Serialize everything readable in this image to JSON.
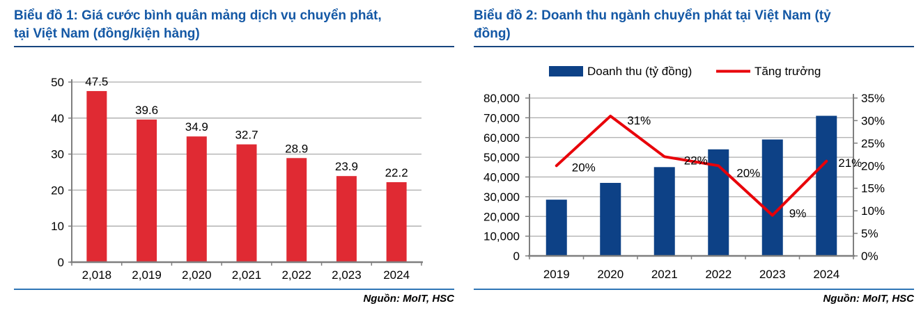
{
  "panels": [
    {
      "title": "Biểu đồ 1: Giá cước bình quân mảng dịch vụ chuyển phát,\ntại Việt Nam (đồng/kiện hàng)",
      "source": "Nguồn: MoIT, HSC"
    },
    {
      "title": "Biểu đồ 2: Doanh thu ngành chuyển phát tại Việt Nam (tỷ\nđồng)",
      "source": "Nguồn: MoIT, HSC"
    }
  ],
  "colors": {
    "title_blue": "#1458A5",
    "title_underline_navy": "#16457F",
    "source_divider_blue": "#2E75B6",
    "bar_red": "#E02A33",
    "line_red": "#E80009",
    "bar_blue": "#0D4186",
    "grid_gray": "#ABABAB",
    "axis_gray": "#7F7F7F",
    "text_black": "#000000"
  },
  "chart_data": [
    {
      "type": "bar",
      "title": "Biểu đồ 1: Giá cước bình quân mảng dịch vụ chuyển phát, tại Việt Nam (đồng/kiện hàng)",
      "categories": [
        "2,018",
        "2,019",
        "2,020",
        "2,021",
        "2,022",
        "2,023",
        "2024"
      ],
      "values": [
        47.5,
        39.6,
        34.9,
        32.7,
        28.9,
        23.9,
        22.2
      ],
      "data_labels": [
        "47.5",
        "39.6",
        "34.9",
        "32.7",
        "28.9",
        "23.9",
        "22.2"
      ],
      "xlabel": "",
      "ylabel": "",
      "ylim": [
        0,
        50
      ],
      "yticks": [
        0,
        10,
        20,
        30,
        40,
        50
      ],
      "ytick_labels": [
        "0",
        "10",
        "20",
        "30",
        "40",
        "50"
      ],
      "grid": true,
      "legend": "none",
      "bar_color": "#E02A33",
      "source": "Nguồn: MoIT, HSC"
    },
    {
      "type": "bar+line",
      "title": "Biểu đồ 2: Doanh thu ngành chuyển phát tại Việt Nam (tỷ đồng)",
      "categories": [
        "2019",
        "2020",
        "2021",
        "2022",
        "2023",
        "2024"
      ],
      "series": [
        {
          "name": "Doanh thu (tỷ đồng)",
          "type": "bar",
          "axis": "left",
          "color": "#0D4186",
          "values": [
            28500,
            37000,
            45000,
            54000,
            59000,
            71000
          ]
        },
        {
          "name": "Tăng trưởng",
          "type": "line",
          "axis": "right",
          "color": "#E80009",
          "values": [
            20,
            31,
            22,
            20,
            9,
            21
          ],
          "point_labels": [
            "20%",
            "31%",
            "22%",
            "20%",
            "9%",
            "21%"
          ]
        }
      ],
      "left_axis": {
        "lim": [
          0,
          80000
        ],
        "tick_labels": [
          "0",
          "10,000",
          "20,000",
          "30,000",
          "40,000",
          "50,000",
          "60,000",
          "70,000",
          "80,000"
        ]
      },
      "right_axis": {
        "lim": [
          0,
          35
        ],
        "tick_labels": [
          "0%",
          "5%",
          "10%",
          "15%",
          "20%",
          "25%",
          "30%",
          "35%"
        ]
      },
      "grid": true,
      "legend_position": "top",
      "source": "Nguồn: MoIT, HSC"
    }
  ]
}
